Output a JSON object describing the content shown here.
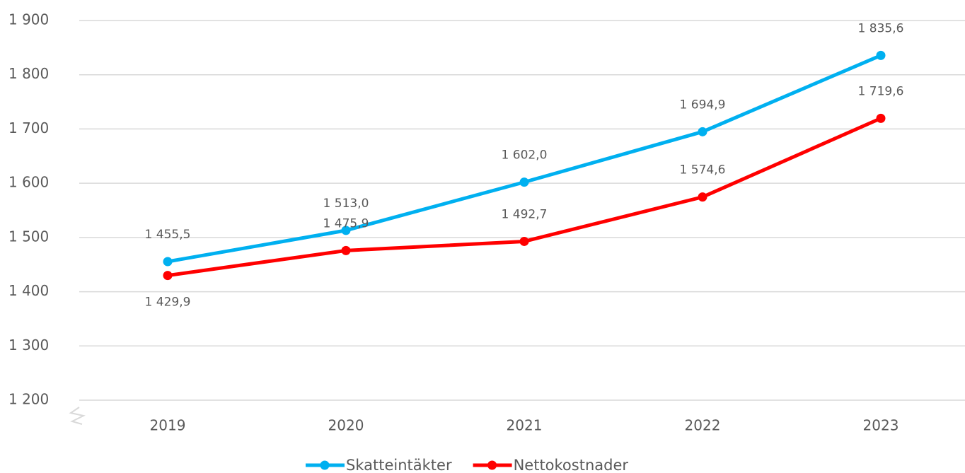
{
  "chart_data": {
    "type": "line",
    "categories": [
      "2019",
      "2020",
      "2021",
      "2022",
      "2023"
    ],
    "series": [
      {
        "name": "Skatteintäkter",
        "color": "#00b0f0",
        "values": [
          1455.5,
          1513.0,
          1602.0,
          1694.9,
          1835.6
        ],
        "value_labels": [
          "1 455,5",
          "1 513,0",
          "1 602,0",
          "1 694,9",
          "1 835,6"
        ]
      },
      {
        "name": "Nettokostnader",
        "color": "#ff0000",
        "values": [
          1429.9,
          1475.9,
          1492.7,
          1574.6,
          1719.6
        ],
        "value_labels": [
          "1 429,9",
          "1 475,9",
          "1 492,7",
          "1 574,6",
          "1 719,6"
        ]
      }
    ],
    "ylim": [
      1200,
      1900
    ],
    "yticks": [
      {
        "value": 1200,
        "label": "1 200"
      },
      {
        "value": 1300,
        "label": "1 300"
      },
      {
        "value": 1400,
        "label": "1 400"
      },
      {
        "value": 1500,
        "label": "1 500"
      },
      {
        "value": 1600,
        "label": "1 600"
      },
      {
        "value": 1700,
        "label": "1 700"
      },
      {
        "value": 1800,
        "label": "1 800"
      },
      {
        "value": 1900,
        "label": "1 900"
      }
    ],
    "grid": true,
    "legend": "bottom"
  }
}
